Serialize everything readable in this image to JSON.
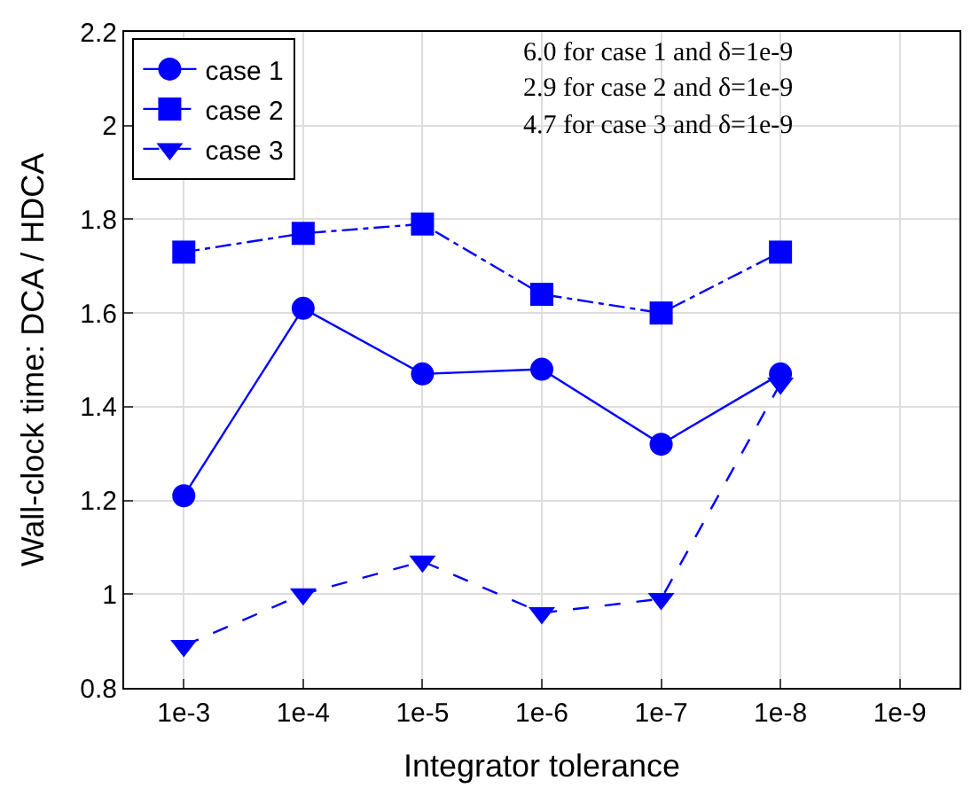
{
  "chart_data": {
    "type": "line",
    "xlabel": "Integrator tolerance",
    "ylabel": "Wall-clock time: DCA / HDCA",
    "categories": [
      "1e-3",
      "1e-4",
      "1e-5",
      "1e-6",
      "1e-7",
      "1e-8",
      "1e-9"
    ],
    "series": [
      {
        "name": "case 1",
        "color": "#0000ff",
        "marker": "circle",
        "line_style": "solid",
        "values": [
          1.21,
          1.61,
          1.47,
          1.48,
          1.32,
          1.47,
          null
        ]
      },
      {
        "name": "case 2",
        "color": "#0000ff",
        "marker": "square",
        "line_style": "dashdot",
        "values": [
          1.73,
          1.77,
          1.79,
          1.64,
          1.6,
          1.73,
          null
        ]
      },
      {
        "name": "case 3",
        "color": "#0000ff",
        "marker": "triangle",
        "line_style": "dashed",
        "values": [
          0.89,
          1.0,
          1.07,
          0.96,
          0.99,
          1.45,
          null
        ]
      }
    ],
    "ylim": [
      0.8,
      2.2
    ],
    "yticks": [
      0.8,
      1,
      1.2,
      1.4,
      1.6,
      1.8,
      2,
      2.2
    ],
    "annotations": [
      "6.0 for case 1 and δ=1e-9",
      "2.9 for case 2 and δ=1e-9",
      "4.7 for case 3 and δ=1e-9"
    ],
    "grid": true,
    "legend": "top left"
  }
}
